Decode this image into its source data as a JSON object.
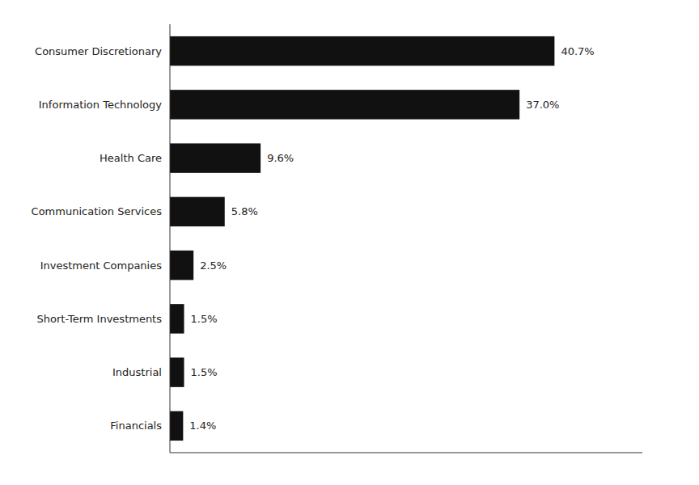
{
  "chart_data": {
    "type": "bar",
    "orientation": "horizontal",
    "categories": [
      "Financials",
      "Industrial",
      "Short-Term Investments",
      "Investment Companies",
      "Communication Services",
      "Health Care",
      "Information Technology",
      "Consumer Discretionary"
    ],
    "values": [
      1.4,
      1.5,
      1.5,
      2.5,
      5.8,
      9.6,
      37.0,
      40.7
    ],
    "value_labels": [
      "1.4%",
      "1.5%",
      "1.5%",
      "2.5%",
      "5.8%",
      "9.6%",
      "37.0%",
      "40.7%"
    ],
    "color": "#111111",
    "xlim": [
      0,
      50
    ],
    "data_labels": true,
    "tick_labels": "y",
    "grid": false
  }
}
